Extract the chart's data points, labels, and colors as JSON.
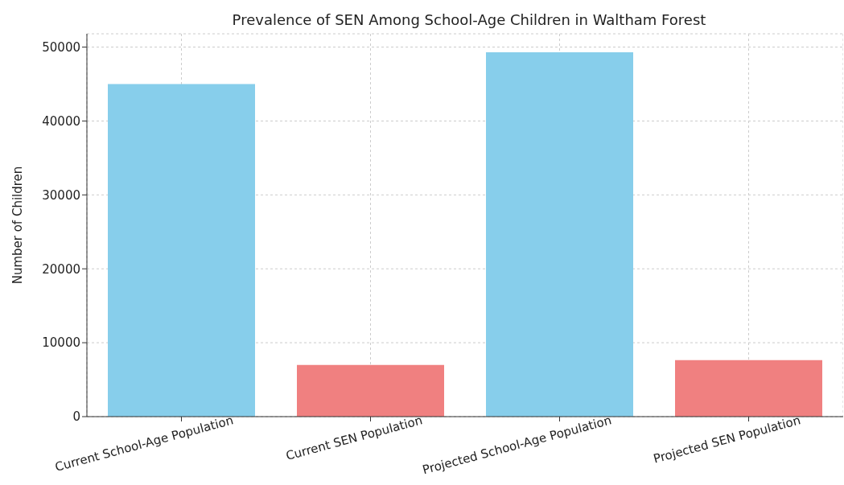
{
  "chart_data": {
    "type": "bar",
    "title": "Prevalence of SEN Among School-Age Children in Waltham Forest",
    "ylabel": "Number of Children",
    "categories": [
      "Current School-Age Population",
      "Current SEN Population",
      "Projected School-Age Population",
      "Projected SEN Population"
    ],
    "values": [
      45000,
      7000,
      49300,
      7650
    ],
    "colors": [
      "#87ceeb",
      "#f08080",
      "#87ceeb",
      "#f08080"
    ],
    "ylim": [
      0,
      51800
    ],
    "yticks": [
      0,
      10000,
      20000,
      30000,
      40000,
      50000
    ],
    "grid": true
  }
}
